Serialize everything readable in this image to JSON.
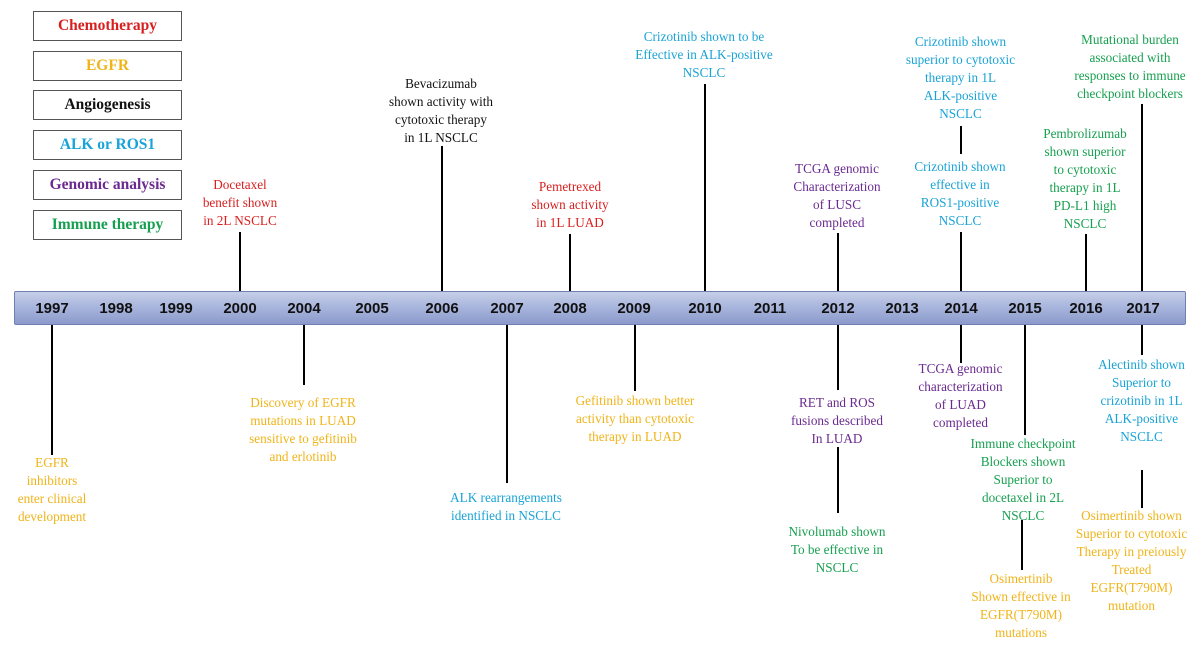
{
  "legend": [
    {
      "label": "Chemotherapy",
      "color": "#d81f1f"
    },
    {
      "label": "EGFR",
      "color": "#f0b419"
    },
    {
      "label": "Angiogenesis",
      "color": "#111111"
    },
    {
      "label": "ALK or ROS1",
      "color": "#1aa3d6"
    },
    {
      "label": "Genomic analysis",
      "color": "#6a2a8f"
    },
    {
      "label": "Immune therapy",
      "color": "#17a050"
    }
  ],
  "years": [
    "1997",
    "1998",
    "1999",
    "2000",
    "2004",
    "2005",
    "2006",
    "2007",
    "2008",
    "2009",
    "2010",
    "2011",
    "2012",
    "2013",
    "2014",
    "2015",
    "2016",
    "2017"
  ],
  "events_above": {
    "e2000": "Docetaxel\nbenefit  shown\nin 2L NSCLC",
    "e2006": "Bevacizumab\nshown activity with\ncytotoxic therapy\nin 1L NSCLC",
    "e2008": "Pemetrexed\nshown activity\nin 1L LUAD",
    "e2010": "Crizotinib  shown  to be\nEffective  in  ALK-positive\nNSCLC",
    "e2012": "TCGA genomic\nCharacterization\nof LUSC\ncompleted",
    "e2014a": "Crizotinib  shown\nsuperior to cytotoxic\ntherapy in 1L\nALK-positive\nNSCLC",
    "e2014b": "Crizotinib  shown\neffective  in\nROS1-positive\nNSCLC",
    "e2016": "Pembrolizumab\nshown superior\nto cytotoxic\ntherapy in 1L\nPD-L1 high\nNSCLC",
    "e2017": "Mutational burden\nassociated with\nresponses to immune\ncheckpoint blockers"
  },
  "events_below": {
    "e1997": "EGFR\ninhibitors\nenter clinical\ndevelopment",
    "e2004": "Discovery of EGFR\nmutations  in LUAD\nsensitive  to gefitinib\nand erlotinib",
    "e2007": "ALK rearrangements\nidentified  in NSCLC",
    "e2009": "Gefitinib  shown better\nactivity than cytotoxic\ntherapy  in LUAD",
    "e2012a": "RET and ROS\nfusions  described\nIn LUAD",
    "e2012b": "Nivolumab  shown\nTo be effective  in\nNSCLC",
    "e2014": "TCGA genomic\ncharacterization\nof LUAD\ncompleted",
    "e2015a": "Immune  checkpoint\nBlockers shown\nSuperior to\ndocetaxel in 2L\nNSCLC",
    "e2015b": "Osimertinib\nShown effective in\nEGFR(T790M)\nmutations",
    "e2017a": "Alectinib  shown\nSuperior to\ncrizotinib  in 1L\nALK-positive\nNSCLC",
    "e2017b": "Osimertinib  shown\nSuperior to cytotoxic\nTherapy in preiously\nTreated\nEGFR(T790M)\nmutation"
  }
}
